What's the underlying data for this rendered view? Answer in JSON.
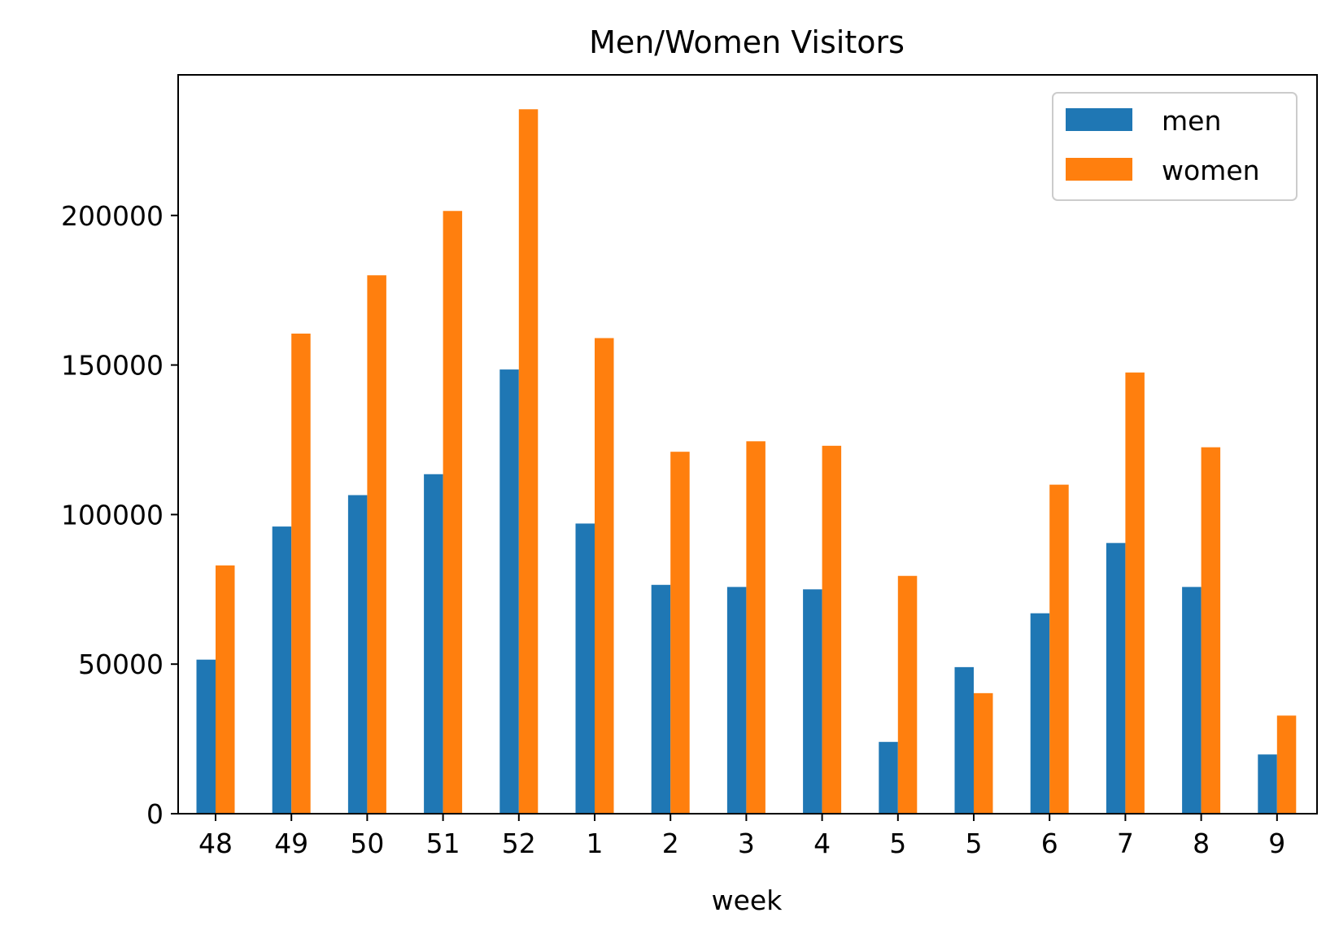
{
  "chart_data": {
    "type": "bar",
    "title": "Men/Women Visitors",
    "xlabel": "week",
    "ylabel": "",
    "categories": [
      "48",
      "49",
      "50",
      "51",
      "52",
      "1",
      "2",
      "3",
      "4",
      "5",
      "5",
      "6",
      "7",
      "8",
      "9"
    ],
    "series": [
      {
        "name": "men",
        "color": "#1f77b4",
        "values": [
          51500,
          96000,
          106500,
          113500,
          148500,
          97000,
          76500,
          75800,
          75000,
          24000,
          49000,
          67000,
          90500,
          75800,
          19800
        ]
      },
      {
        "name": "women",
        "color": "#ff7f0e",
        "values": [
          83000,
          160500,
          180000,
          201500,
          235500,
          159000,
          121000,
          124500,
          123000,
          79500,
          40300,
          110000,
          147500,
          122500,
          32800
        ]
      }
    ],
    "yticks": [
      0,
      50000,
      100000,
      150000,
      200000
    ],
    "ytick_labels": [
      "0",
      "50000",
      "100000",
      "150000",
      "200000"
    ],
    "ylim": [
      0,
      247000
    ],
    "grid": false,
    "legend_position": "top-right"
  }
}
